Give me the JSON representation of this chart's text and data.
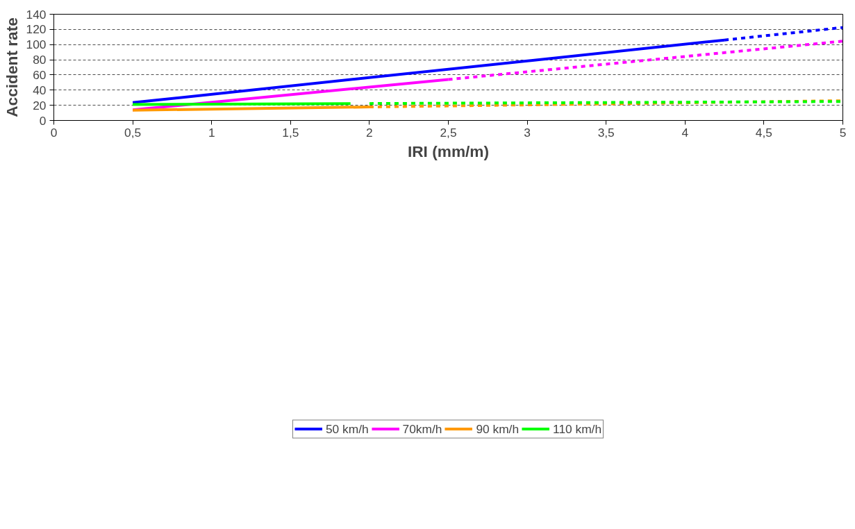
{
  "chart_data": {
    "type": "line",
    "xlabel": "IRI (mm/m)",
    "ylabel": "Accident rate",
    "xlim": [
      0,
      5
    ],
    "ylim": [
      0,
      140
    ],
    "xticks": [
      0,
      {
        "value": 0.5,
        "label": "0,5"
      },
      1,
      {
        "value": 1.5,
        "label": "1,5"
      },
      2,
      {
        "value": 2.5,
        "label": "2,5"
      },
      3,
      {
        "value": 3.5,
        "label": "3,5"
      },
      4,
      {
        "value": 4.5,
        "label": "4,5"
      },
      5
    ],
    "yticks": [
      0,
      20,
      40,
      60,
      80,
      100,
      120,
      140
    ],
    "grid": "y",
    "legend": "bottom",
    "marker": "none",
    "series": [
      {
        "name": "50 km/h",
        "color": "#0000ff",
        "line_style": "solid",
        "x": [
          0.5,
          4.25
        ],
        "values": [
          23.5,
          106
        ]
      },
      {
        "name": "70km/h",
        "color": "#ff00ff",
        "line_style": "solid",
        "x": [
          0.5,
          2.5
        ],
        "values": [
          14,
          54
        ]
      },
      {
        "name": "90 km/h",
        "color": "#ff9900",
        "line_style": "solid",
        "x": [
          0.5,
          2
        ],
        "values": [
          13.5,
          17.8
        ]
      },
      {
        "name": "110 km/h",
        "color": "#00ff00",
        "line_style": "solid",
        "x": [
          0.5,
          1.88
        ],
        "values": [
          21,
          22.2
        ]
      },
      {
        "color": "#0000ff",
        "line_style": "dashed",
        "x": [
          4.25,
          5
        ],
        "values": [
          106,
          122.5
        ]
      },
      {
        "color": "#ff00ff",
        "line_style": "dashed",
        "x": [
          2.5,
          5
        ],
        "values": [
          54,
          104.5
        ]
      },
      {
        "color": "#ff9900",
        "line_style": "dashed",
        "x": [
          2,
          5
        ],
        "values": [
          17.8,
          26
        ]
      },
      {
        "color": "#00ff00",
        "line_style": "dashed",
        "x": [
          2,
          5
        ],
        "values": [
          22.3,
          25
        ]
      }
    ]
  }
}
